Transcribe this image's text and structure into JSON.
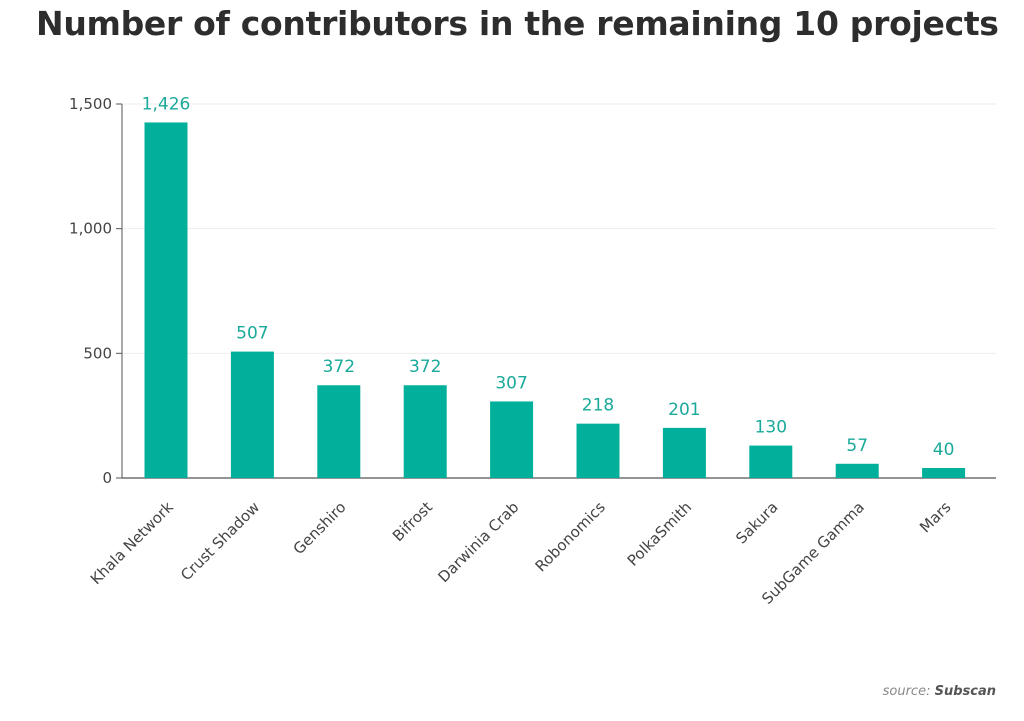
{
  "chart_data": {
    "type": "bar",
    "title": "Number of contributors in the remaining 10 projects",
    "xlabel": "",
    "ylabel": "",
    "categories": [
      "Khala Network",
      "Crust Shadow",
      "Genshiro",
      "Bifrost",
      "Darwinia Crab",
      "Robonomics",
      "PolkaSmith",
      "Sakura",
      "SubGame Gamma",
      "Mars"
    ],
    "values": [
      1426,
      507,
      372,
      372,
      307,
      218,
      201,
      130,
      57,
      40
    ],
    "data_labels": [
      "1,426",
      "507",
      "372",
      "372",
      "307",
      "218",
      "201",
      "130",
      "57",
      "40"
    ],
    "ylim": [
      0,
      1500
    ],
    "yticks": [
      0,
      500,
      1000,
      1500
    ],
    "ytick_labels": [
      "0",
      "500",
      "1,000",
      "1,500"
    ],
    "grid": true,
    "legend": "none"
  },
  "colors": {
    "bar": "#00b09b",
    "label": "#1aa99a",
    "axis": "#555555",
    "grid": "#eeeeee"
  },
  "source": {
    "prefix": "source:",
    "name": "Subscan"
  }
}
